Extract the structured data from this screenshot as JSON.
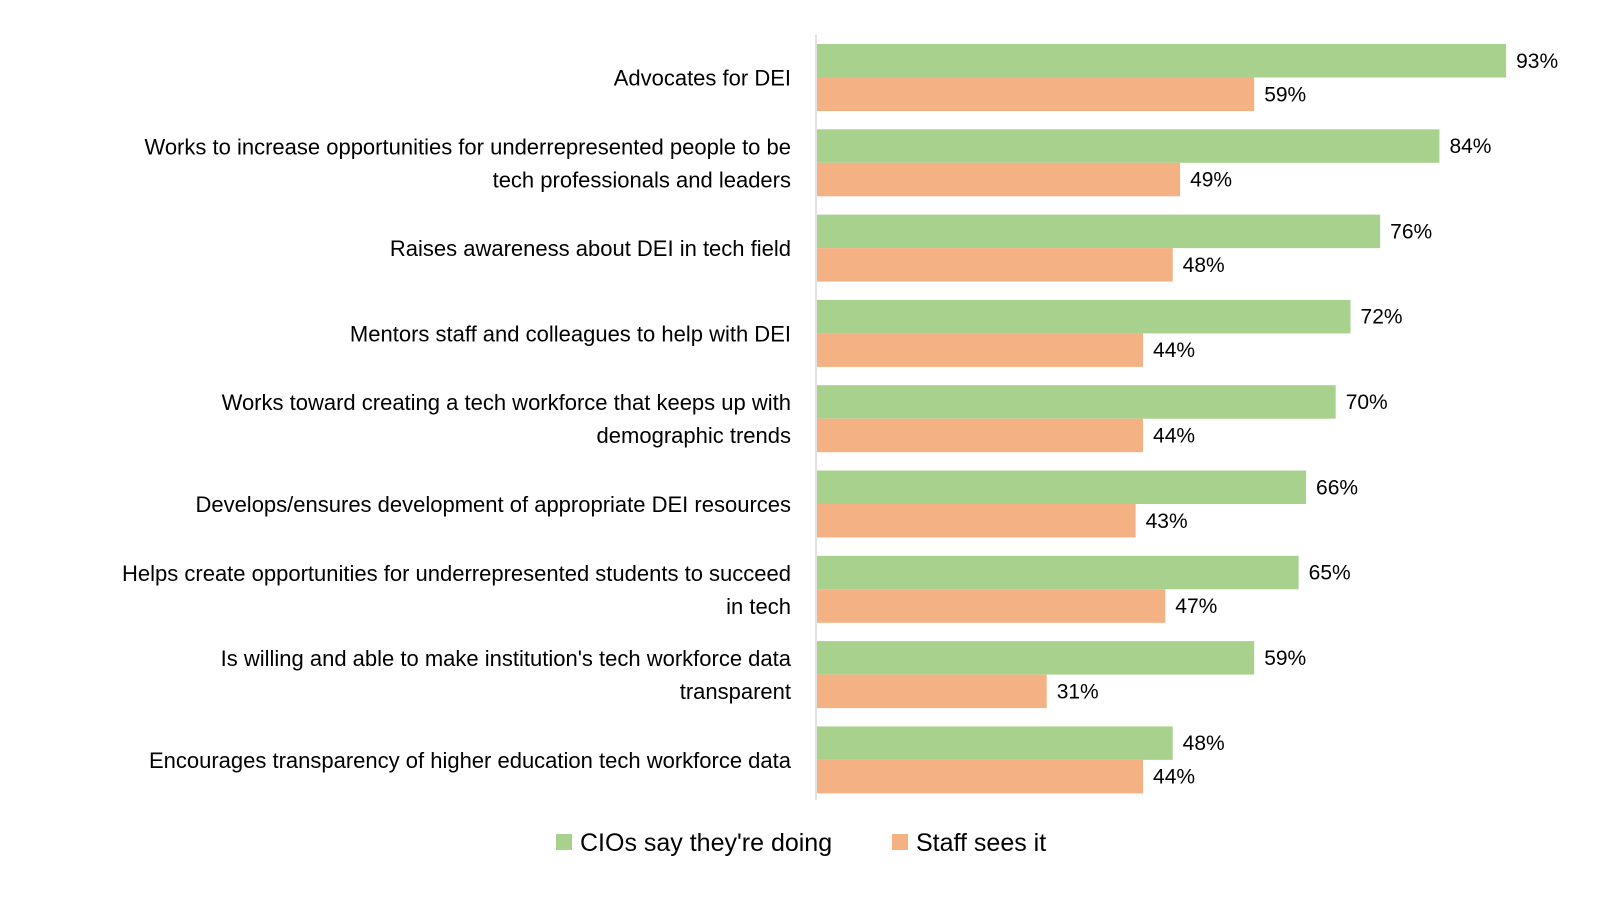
{
  "chart_data": {
    "type": "bar",
    "orientation": "horizontal",
    "categories": [
      "Advocates for DEI",
      "Works to increase opportunities for underrepresented people to be tech professionals and leaders",
      "Raises awareness about DEI in tech field",
      "Mentors staff and colleagues to help with DEI",
      "Works toward creating a tech workforce that keeps up with demographic trends",
      "Develops/ensures development of appropriate DEI resources",
      "Helps create opportunities for underrepresented students to succeed in tech",
      "Is willing and able to make institution's tech workforce data transparent",
      "Encourages transparency of higher education tech workforce data"
    ],
    "category_lines": [
      [
        "Advocates for DEI"
      ],
      [
        "Works to increase opportunities for underrepresented people to be",
        "tech professionals and leaders"
      ],
      [
        "Raises awareness about DEI in tech field"
      ],
      [
        "Mentors staff and colleagues to help with DEI"
      ],
      [
        "Works toward creating a tech workforce that keeps up with",
        "demographic trends"
      ],
      [
        "Develops/ensures development of appropriate DEI resources"
      ],
      [
        "Helps create opportunities for underrepresented students to succeed",
        "in tech"
      ],
      [
        "Is willing and able to make institution's tech workforce data",
        "transparent"
      ],
      [
        "Encourages transparency of higher education tech workforce data"
      ]
    ],
    "series": [
      {
        "name": "CIOs say they're doing",
        "color": "#a9d18e",
        "values": [
          93,
          84,
          76,
          72,
          70,
          66,
          65,
          59,
          48
        ]
      },
      {
        "name": "Staff sees it",
        "color": "#f4b183",
        "values": [
          59,
          49,
          48,
          44,
          44,
          43,
          47,
          31,
          44
        ]
      }
    ],
    "value_suffix": "%",
    "xlim": [
      0,
      100
    ],
    "grid": false,
    "legend_position": "bottom",
    "title": "",
    "xlabel": "",
    "ylabel": ""
  }
}
